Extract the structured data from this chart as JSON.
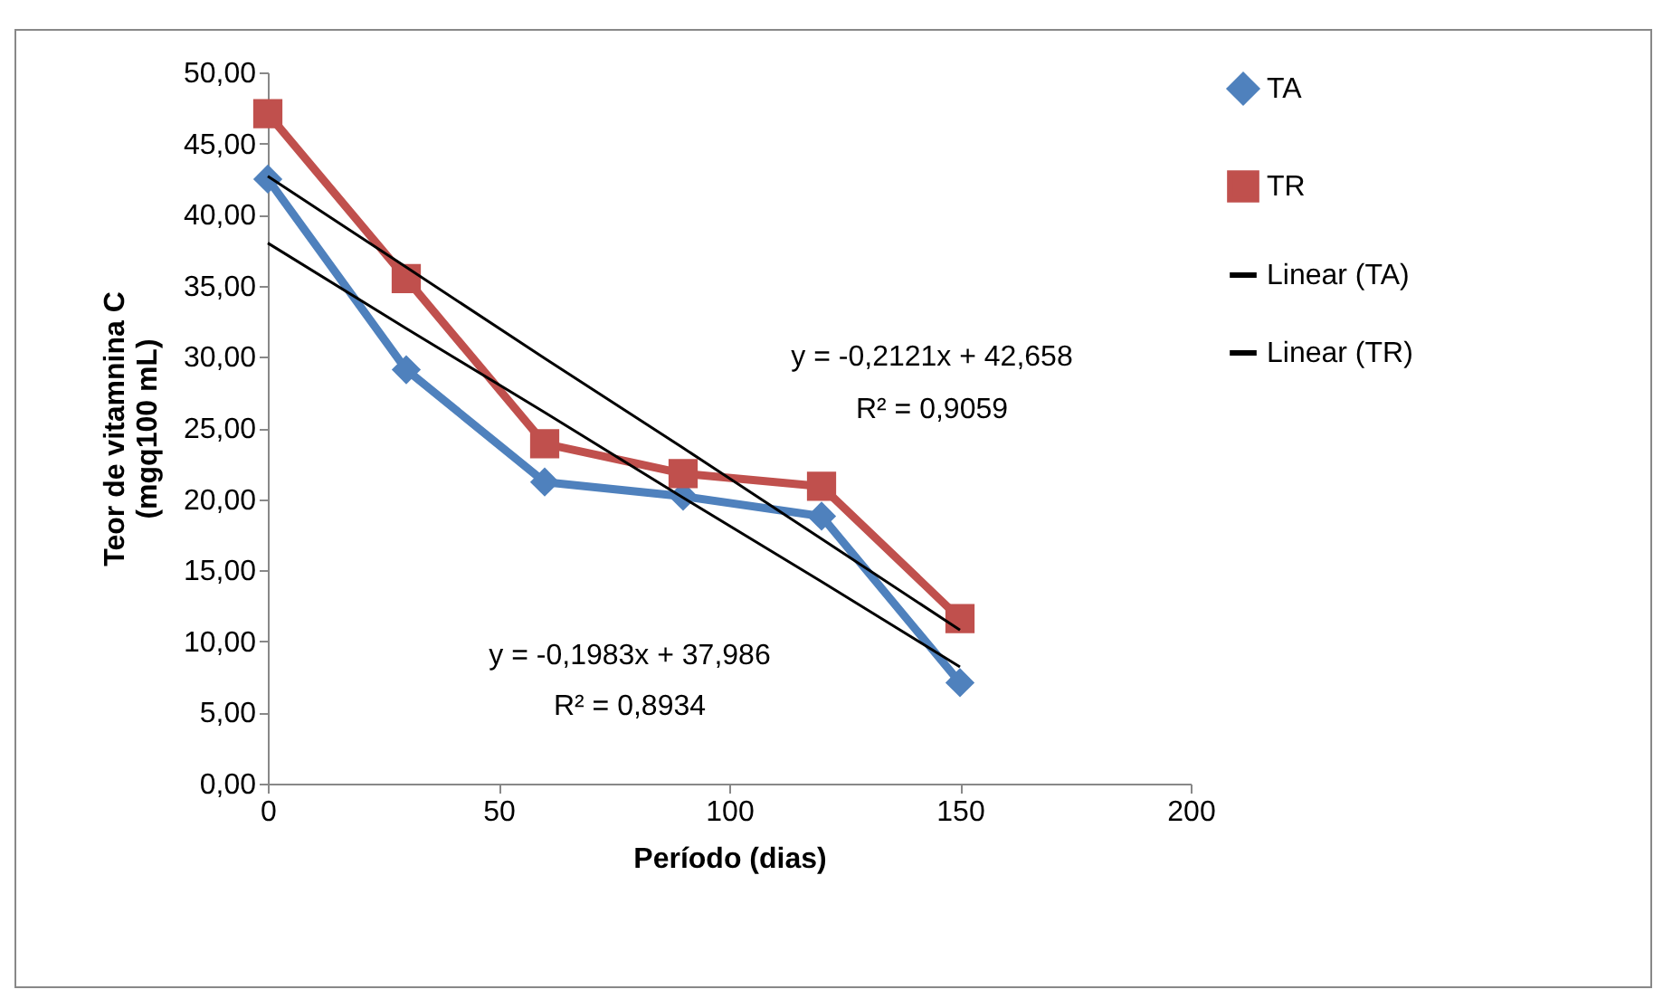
{
  "chart_data": {
    "type": "line",
    "xlabel": "Período (dias)",
    "ylabel": "Teor de vitamnina C\n(mgq100 mL)",
    "x": [
      0,
      30,
      60,
      90,
      120,
      150
    ],
    "series": [
      {
        "name": "TA",
        "color": "#4f81bd",
        "marker": "diamond",
        "values": [
          42.5,
          29.1,
          21.2,
          20.2,
          18.8,
          7.1
        ]
      },
      {
        "name": "TR",
        "color": "#c0504d",
        "marker": "square",
        "values": [
          47.1,
          35.5,
          23.9,
          21.8,
          20.9,
          11.6
        ]
      },
      {
        "name": "Linear (TA)",
        "color": "#000000",
        "values": [
          38.0,
          32.0,
          26.1,
          20.1,
          14.2,
          8.2
        ]
      },
      {
        "name": "Linear (TR)",
        "color": "#000000",
        "values": [
          42.7,
          36.3,
          29.9,
          23.6,
          17.2,
          10.8
        ]
      }
    ],
    "annotations": [
      "y = -0,2121x + 42,658",
      "R² = 0,9059",
      "y = -0,1983x + 37,986",
      "R² = 0,8934"
    ],
    "xlim": [
      0,
      200
    ],
    "xticks": [
      0,
      50,
      100,
      150,
      200
    ],
    "ylim": [
      0,
      50
    ],
    "yticks": [
      {
        "value": 0,
        "label": "0,00"
      },
      {
        "value": 5,
        "label": "5,00"
      },
      {
        "value": 10,
        "label": "10,00"
      },
      {
        "value": 15,
        "label": "15,00"
      },
      {
        "value": 20,
        "label": "20,00"
      },
      {
        "value": 25,
        "label": "25,00"
      },
      {
        "value": 30,
        "label": "30,00"
      },
      {
        "value": 35,
        "label": "35,00"
      },
      {
        "value": 40,
        "label": "40,00"
      },
      {
        "value": 45,
        "label": "45,00"
      },
      {
        "value": 50,
        "label": "50,00"
      }
    ],
    "grid": false,
    "legend": "right",
    "line_style": "solid"
  }
}
